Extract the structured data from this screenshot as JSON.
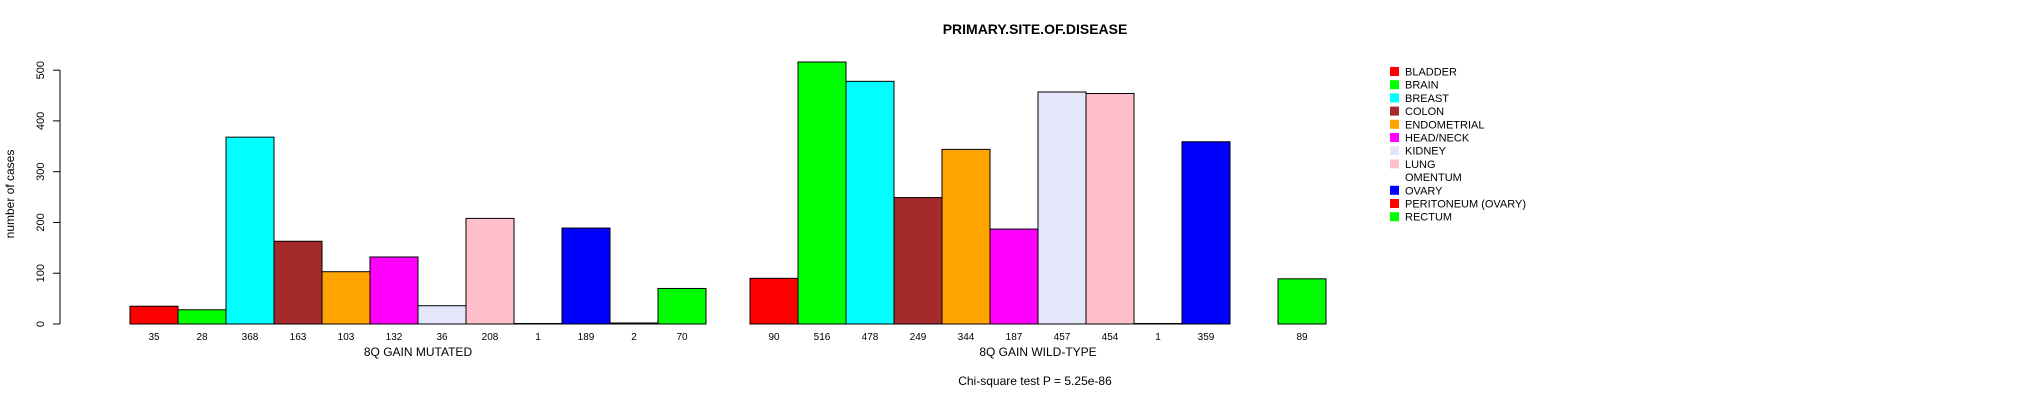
{
  "chart_data": {
    "type": "bar",
    "title": "PRIMARY.SITE.OF.DISEASE",
    "ylabel": "number of cases",
    "ylim": [
      0,
      520
    ],
    "yticks": [
      0,
      100,
      200,
      300,
      400,
      500
    ],
    "footer": "Chi-square test P = 5.25e-86",
    "categories": [
      "BLADDER",
      "BRAIN",
      "BREAST",
      "COLON",
      "ENDOMETRIAL",
      "HEAD/NECK",
      "KIDNEY",
      "LUNG",
      "OMENTUM",
      "OVARY",
      "PERITONEUM (OVARY)",
      "RECTUM"
    ],
    "colors": [
      "#ff0000",
      "#00ff00",
      "#00ffff",
      "#a52a2a",
      "#ffa500",
      "#ff00ff",
      "#e6e6fa",
      "#ffc0cb",
      "#ffffff",
      "#0000ff",
      "#ff0000",
      "#00ff00"
    ],
    "groups": [
      {
        "name": "8Q GAIN MUTATED",
        "values": [
          35,
          28,
          368,
          163,
          103,
          132,
          36,
          208,
          1,
          189,
          2,
          70
        ],
        "labels": [
          "35",
          "28",
          "368",
          "163",
          "103",
          "132",
          "36",
          "208",
          "1",
          "189",
          "2",
          "70"
        ]
      },
      {
        "name": "8Q GAIN WILD-TYPE",
        "values": [
          90,
          516,
          478,
          249,
          344,
          187,
          457,
          454,
          1,
          359,
          0,
          89
        ],
        "labels": [
          "90",
          "516",
          "478",
          "249",
          "344",
          "187",
          "457",
          "454",
          "1",
          "359",
          "",
          "89"
        ]
      }
    ],
    "legend_position": "right"
  }
}
